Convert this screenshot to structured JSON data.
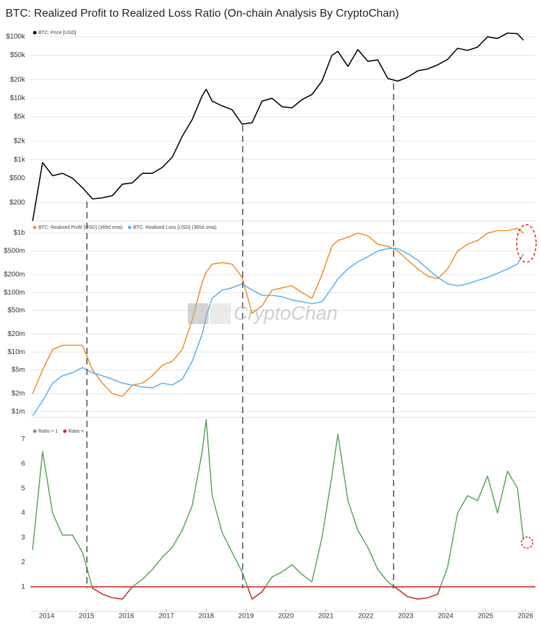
{
  "title": "BTC: Realized Profit to Realized Loss Ratio (On-chain Analysis By CryptoChan)",
  "watermark": "CryptoChan",
  "chart_data": [
    {
      "type": "line",
      "log_scale": true,
      "grid": true,
      "x": [
        2013.65,
        2013.9,
        2014.15,
        2014.4,
        2014.65,
        2014.9,
        2015.15,
        2015.4,
        2015.65,
        2015.9,
        2016.15,
        2016.4,
        2016.65,
        2016.9,
        2017.15,
        2017.4,
        2017.65,
        2017.9,
        2018.0,
        2018.15,
        2018.4,
        2018.65,
        2018.9,
        2019.15,
        2019.4,
        2019.65,
        2019.9,
        2020.15,
        2020.4,
        2020.65,
        2020.9,
        2021.15,
        2021.3,
        2021.55,
        2021.8,
        2022.05,
        2022.3,
        2022.55,
        2022.8,
        2023.05,
        2023.3,
        2023.55,
        2023.8,
        2024.05,
        2024.3,
        2024.55,
        2024.8,
        2025.05,
        2025.3,
        2025.55,
        2025.8,
        2025.95
      ],
      "xlim": [
        2013.6,
        2026.25
      ],
      "ylim": [
        100,
        140000
      ],
      "yticks": [
        {
          "value": 100000,
          "label": "$100k"
        },
        {
          "value": 50000,
          "label": "$50k"
        },
        {
          "value": 20000,
          "label": "$20k"
        },
        {
          "value": 10000,
          "label": "$10k"
        },
        {
          "value": 5000,
          "label": "$5k"
        },
        {
          "value": 2000,
          "label": "$2k"
        },
        {
          "value": 1000,
          "label": "$1k"
        },
        {
          "value": 500,
          "label": "$500"
        },
        {
          "value": 200,
          "label": "$200"
        }
      ],
      "series": [
        {
          "name": "BTC: Price [USD]",
          "color": "#000000",
          "values": [
            100,
            900,
            550,
            600,
            500,
            350,
            230,
            240,
            260,
            400,
            420,
            600,
            600,
            750,
            1100,
            2400,
            4500,
            11000,
            14000,
            9000,
            7500,
            6500,
            3800,
            4000,
            9000,
            10000,
            7300,
            7000,
            9500,
            11500,
            19000,
            50000,
            58000,
            33000,
            62000,
            40000,
            42000,
            21000,
            19000,
            22000,
            28000,
            30000,
            35000,
            43000,
            65000,
            60000,
            68000,
            100000,
            94000,
            115000,
            112000,
            88000
          ]
        }
      ]
    },
    {
      "type": "line",
      "log_scale": true,
      "grid": true,
      "x": [
        2013.65,
        2013.9,
        2014.15,
        2014.4,
        2014.65,
        2014.9,
        2015.15,
        2015.4,
        2015.65,
        2015.9,
        2016.15,
        2016.4,
        2016.65,
        2016.9,
        2017.15,
        2017.4,
        2017.65,
        2017.9,
        2018.0,
        2018.15,
        2018.4,
        2018.65,
        2018.9,
        2019.15,
        2019.4,
        2019.65,
        2019.9,
        2020.15,
        2020.4,
        2020.65,
        2020.9,
        2021.15,
        2021.3,
        2021.55,
        2021.8,
        2022.05,
        2022.3,
        2022.55,
        2022.8,
        2023.05,
        2023.3,
        2023.55,
        2023.8,
        2024.05,
        2024.3,
        2024.55,
        2024.8,
        2025.05,
        2025.3,
        2025.55,
        2025.8,
        2025.95
      ],
      "xlim": [
        2013.6,
        2026.25
      ],
      "ylim": [
        800000,
        1500000000
      ],
      "yticks": [
        {
          "value": 1000000000,
          "label": "$1b"
        },
        {
          "value": 500000000,
          "label": "$500m"
        },
        {
          "value": 200000000,
          "label": "$200m"
        },
        {
          "value": 100000000,
          "label": "$100m"
        },
        {
          "value": 50000000,
          "label": "$50m"
        },
        {
          "value": 20000000,
          "label": "$20m"
        },
        {
          "value": 10000000,
          "label": "$10m"
        },
        {
          "value": 5000000,
          "label": "$5m"
        },
        {
          "value": 2000000,
          "label": "$2m"
        },
        {
          "value": 1000000,
          "label": "$1m"
        }
      ],
      "series": [
        {
          "name": "BTC: Realized Profit [USD] (365d sma)",
          "color": "#f0922b",
          "values": [
            2000000,
            5000000,
            11000000,
            13000000,
            13000000,
            13000000,
            5000000,
            3000000,
            2000000,
            1800000,
            2800000,
            3000000,
            4000000,
            6000000,
            7000000,
            11000000,
            35000000,
            150000000,
            220000000,
            300000000,
            320000000,
            300000000,
            180000000,
            45000000,
            60000000,
            110000000,
            120000000,
            130000000,
            100000000,
            80000000,
            200000000,
            600000000,
            750000000,
            850000000,
            1000000000,
            900000000,
            650000000,
            600000000,
            500000000,
            350000000,
            250000000,
            190000000,
            170000000,
            250000000,
            500000000,
            650000000,
            750000000,
            1000000000,
            1100000000,
            1100000000,
            1200000000,
            1000000000
          ]
        },
        {
          "name": "BTC: Realized Loss [USD] (365d sma)",
          "color": "#5db4ea",
          "values": [
            850000,
            1500000,
            3000000,
            4000000,
            4500000,
            5500000,
            4500000,
            4000000,
            3500000,
            3000000,
            2800000,
            2600000,
            2500000,
            3000000,
            2800000,
            3500000,
            7000000,
            20000000,
            40000000,
            80000000,
            110000000,
            120000000,
            140000000,
            110000000,
            90000000,
            90000000,
            85000000,
            75000000,
            70000000,
            65000000,
            70000000,
            120000000,
            170000000,
            250000000,
            330000000,
            400000000,
            500000000,
            550000000,
            550000000,
            450000000,
            350000000,
            250000000,
            180000000,
            140000000,
            130000000,
            140000000,
            160000000,
            180000000,
            210000000,
            250000000,
            300000000,
            450000000
          ]
        }
      ]
    },
    {
      "type": "line",
      "log_scale": false,
      "grid": false,
      "threshold": 1,
      "x": [
        2013.65,
        2013.9,
        2014.15,
        2014.4,
        2014.65,
        2014.9,
        2015.15,
        2015.4,
        2015.65,
        2015.9,
        2016.15,
        2016.4,
        2016.65,
        2016.9,
        2017.15,
        2017.4,
        2017.65,
        2017.9,
        2018.0,
        2018.15,
        2018.4,
        2018.65,
        2018.9,
        2019.15,
        2019.4,
        2019.65,
        2019.9,
        2020.15,
        2020.4,
        2020.65,
        2020.9,
        2021.15,
        2021.3,
        2021.55,
        2021.8,
        2022.05,
        2022.3,
        2022.55,
        2022.8,
        2023.05,
        2023.3,
        2023.55,
        2023.8,
        2024.05,
        2024.3,
        2024.55,
        2024.8,
        2025.05,
        2025.3,
        2025.55,
        2025.8,
        2025.95
      ],
      "xlim": [
        2013.6,
        2026.25
      ],
      "xticks": [
        2014,
        2015,
        2016,
        2017,
        2018,
        2019,
        2020,
        2021,
        2022,
        2023,
        2024,
        2025,
        2026
      ],
      "ylim": [
        0,
        8
      ],
      "yticks": [
        1,
        2,
        3,
        4,
        5,
        6,
        7
      ],
      "series": [
        {
          "name": "Ratio > 1",
          "color": "#5fa85f",
          "side": "above",
          "values": [
            2.5,
            6.5,
            4,
            3.1,
            3.1,
            2.4,
            0.95,
            0.7,
            0.55,
            0.5,
            1.0,
            1.3,
            1.7,
            2.2,
            2.6,
            3.3,
            4.3,
            6.5,
            7.8,
            4.7,
            3.2,
            2.4,
            1.6,
            0.5,
            0.8,
            1.4,
            1.6,
            1.9,
            1.5,
            1.2,
            3.0,
            5.5,
            7.2,
            4.5,
            3.3,
            2.6,
            1.7,
            1.2,
            0.9,
            0.6,
            0.5,
            0.55,
            0.7,
            1.8,
            4.0,
            4.7,
            4.5,
            5.5,
            4.0,
            5.7,
            5.0,
            2.9
          ]
        },
        {
          "name": "Ratio <",
          "color": "#c8302c",
          "side": "below",
          "values": [
            2.5,
            6.5,
            4,
            3.1,
            3.1,
            2.4,
            0.95,
            0.7,
            0.55,
            0.5,
            1.0,
            1.3,
            1.7,
            2.2,
            2.6,
            3.3,
            4.3,
            6.5,
            7.8,
            4.7,
            3.2,
            2.4,
            1.6,
            0.5,
            0.8,
            1.4,
            1.6,
            1.9,
            1.5,
            1.2,
            3.0,
            5.5,
            7.2,
            4.5,
            3.3,
            2.6,
            1.7,
            1.2,
            0.9,
            0.6,
            0.5,
            0.55,
            0.7,
            1.8,
            4.0,
            4.7,
            4.5,
            5.5,
            4.0,
            5.7,
            5.0,
            2.9
          ]
        }
      ]
    }
  ]
}
